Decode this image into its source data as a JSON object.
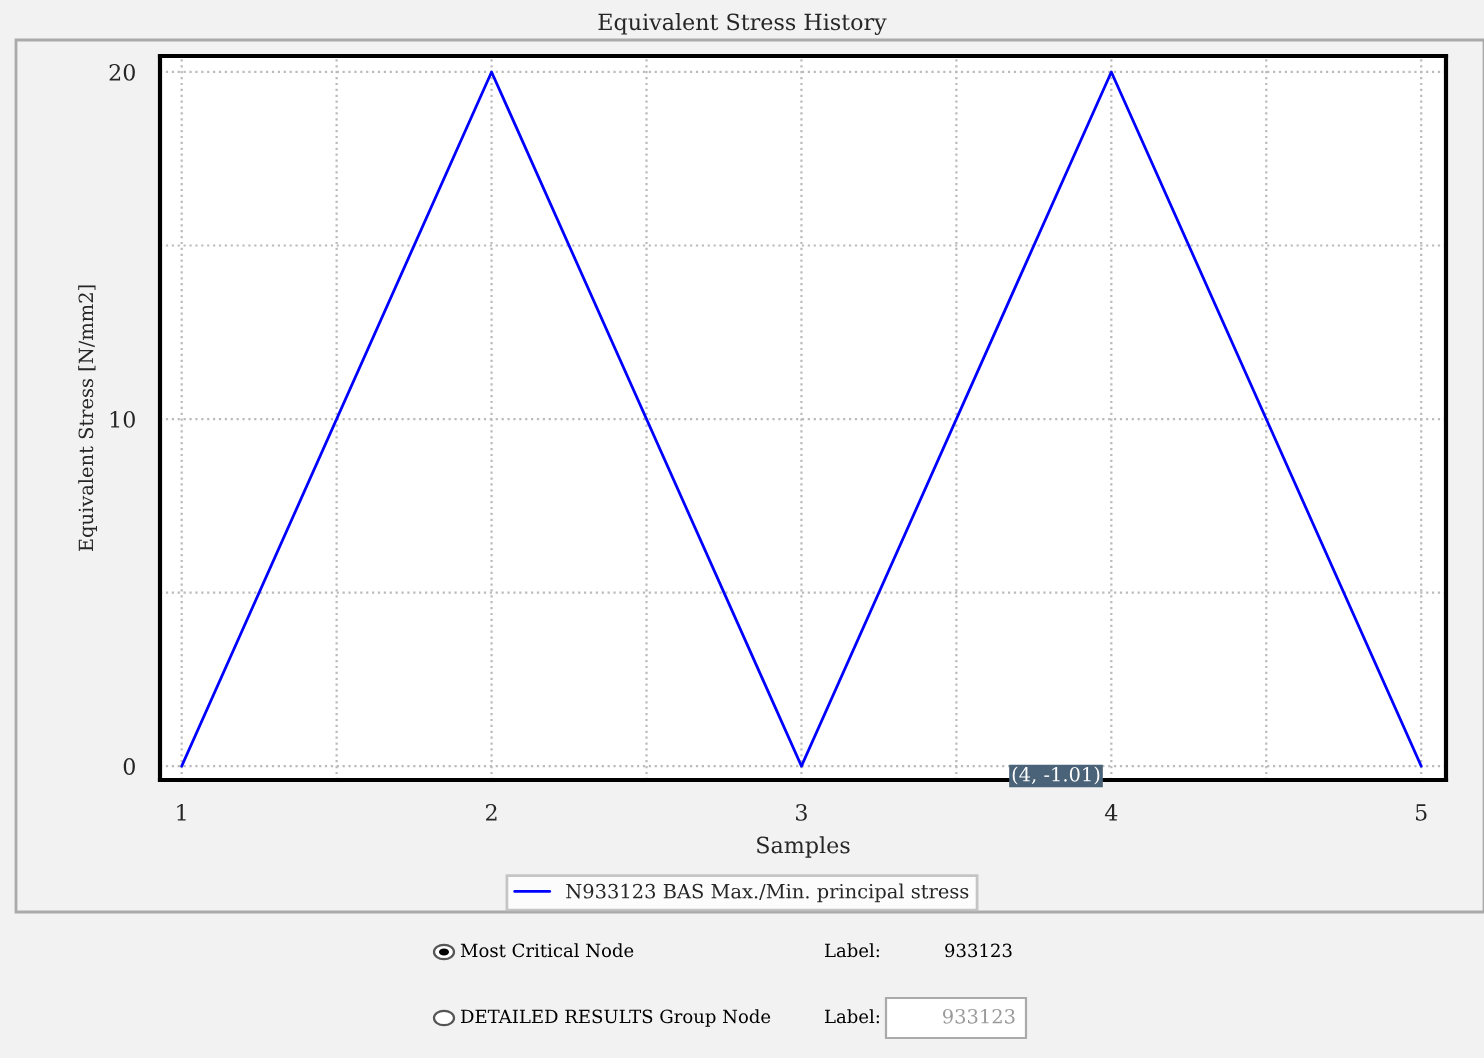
{
  "chart_data": {
    "type": "line",
    "title": "Equivalent Stress History",
    "xlabel": "Samples",
    "ylabel": "Equivalent Stress [N/mm2]",
    "x": [
      1,
      2,
      3,
      4,
      5
    ],
    "series": [
      {
        "name": "N933123 BAS Max./Min. principal stress",
        "color": "#0000ff",
        "values": [
          0,
          20,
          0,
          20,
          0
        ]
      }
    ],
    "xlim": [
      0.93,
      5.08
    ],
    "ylim": [
      -0.4,
      20.46
    ],
    "xticks": [
      1,
      {
        "value": 1.5,
        "label": null
      },
      2,
      {
        "value": 2.5,
        "label": null
      },
      3,
      {
        "value": 3.5,
        "label": null
      },
      4,
      {
        "value": 4.5,
        "label": null
      },
      5
    ],
    "yticks": [
      0,
      {
        "value": 5,
        "label": null
      },
      10,
      {
        "value": 15,
        "label": null
      },
      20
    ],
    "grid": true,
    "legend": "bottom",
    "marker": "none",
    "line_style": "solid",
    "annotations": [
      "(4, -1.01)",
      "Most Critical Node",
      "Label:",
      "933123",
      "DETAILED RESULTS Group Node",
      "Label:",
      "933123"
    ]
  }
}
